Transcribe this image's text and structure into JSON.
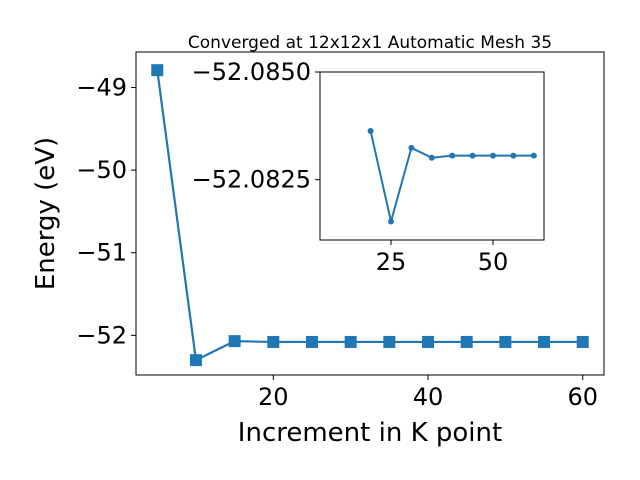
{
  "chart_data": [
    {
      "type": "line",
      "title": "Converged at 12x12x1 Automatic Mesh 35",
      "x_label": "Increment in K point",
      "y_label": "Energy (eV)",
      "x": [
        5,
        10,
        15,
        20,
        25,
        30,
        35,
        40,
        45,
        50,
        55,
        60
      ],
      "series": [
        {
          "color": "#1f77b4",
          "marker": "square",
          "values": [
            -48.79,
            -52.3,
            -52.07,
            -52.08,
            -52.08,
            -52.08,
            -52.08,
            -52.08,
            -52.08,
            -52.08,
            -52.08,
            -52.08
          ]
        }
      ],
      "xlim": [
        2.25,
        62.75
      ],
      "ylim": [
        -52.48,
        -48.57
      ],
      "xticks": [
        20,
        40,
        60
      ],
      "yticks": [
        {
          "value": -49,
          "label": "−49"
        },
        {
          "value": -50,
          "label": "−50"
        },
        {
          "value": -51,
          "label": "−51"
        },
        {
          "value": -52,
          "label": "−52"
        }
      ]
    },
    {
      "type": "line",
      "x": [
        20,
        25,
        30,
        35,
        40,
        45,
        50,
        55,
        60
      ],
      "series": [
        {
          "color": "#1f77b4",
          "marker": "circle",
          "values": [
            -52.08363,
            -52.08153,
            -52.08324,
            -52.08301,
            -52.08306,
            -52.08306,
            -52.08306,
            -52.08306,
            -52.08306
          ]
        }
      ],
      "xlim": [
        7.6,
        62.5
      ],
      "ylim": [
        -52.0811,
        -52.085
      ],
      "xticks": [
        25,
        50
      ],
      "yticks": [
        {
          "value": -52.085,
          "label": "−52.0850"
        },
        {
          "value": -52.0825,
          "label": "−52.0825"
        }
      ]
    }
  ]
}
